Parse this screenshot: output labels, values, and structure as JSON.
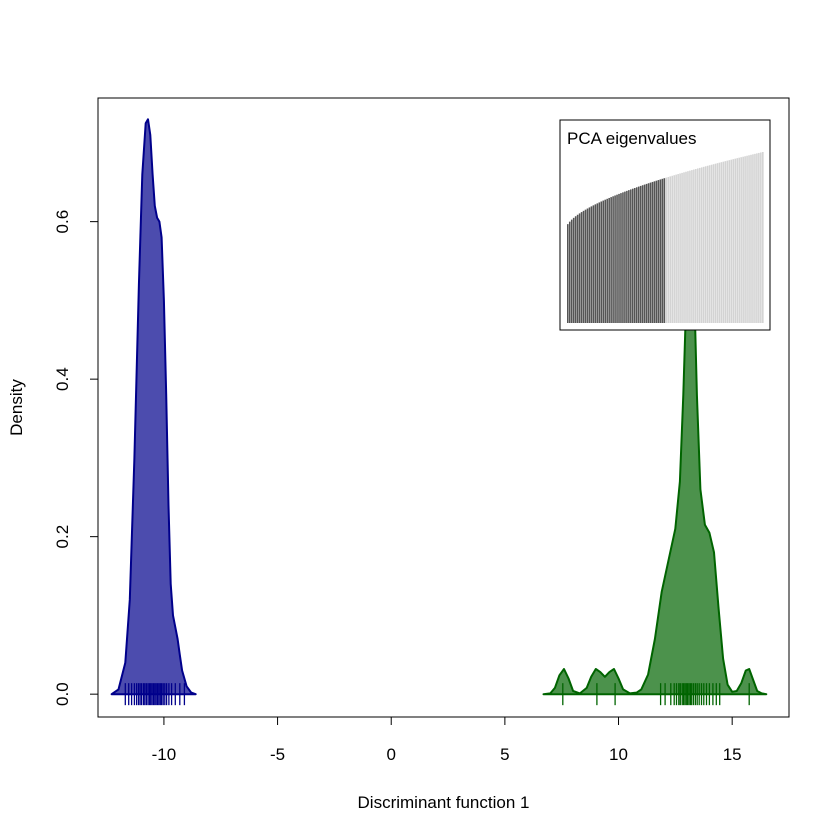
{
  "chart_data": {
    "type": "area",
    "title": "",
    "xlabel": "Discriminant function 1",
    "ylabel": "Density",
    "xlim": [
      -12.9,
      17.5
    ],
    "ylim": [
      -0.029,
      0.757
    ],
    "x_ticks": [
      -10,
      -5,
      0,
      5,
      10,
      15
    ],
    "x_tick_labels": [
      "-10",
      "-5",
      "0",
      "5",
      "10",
      "15"
    ],
    "y_ticks": [
      0.0,
      0.2,
      0.4,
      0.6
    ],
    "y_tick_labels": [
      "0.0",
      "0.2",
      "0.4",
      "0.6"
    ],
    "grid": false,
    "series": [
      {
        "color": "#00008b",
        "fill": "rgba(0,0,139,0.7)",
        "density": {
          "x": [
            -12.3,
            -12.0,
            -11.7,
            -11.5,
            -11.3,
            -11.1,
            -10.95,
            -10.8,
            -10.7,
            -10.6,
            -10.5,
            -10.4,
            -10.3,
            -10.2,
            -10.1,
            -10.0,
            -9.9,
            -9.8,
            -9.7,
            -9.6,
            -9.5,
            -9.4,
            -9.3,
            -9.2,
            -9.0,
            -8.8,
            -8.6
          ],
          "y": [
            0.0,
            0.006,
            0.04,
            0.12,
            0.3,
            0.52,
            0.66,
            0.725,
            0.73,
            0.71,
            0.66,
            0.62,
            0.605,
            0.6,
            0.58,
            0.5,
            0.38,
            0.24,
            0.14,
            0.1,
            0.085,
            0.07,
            0.05,
            0.03,
            0.01,
            0.002,
            0.0
          ]
        },
        "rug": [
          -11.7,
          -11.55,
          -11.42,
          -11.3,
          -11.2,
          -11.12,
          -11.05,
          -10.98,
          -10.9,
          -10.84,
          -10.77,
          -10.7,
          -10.64,
          -10.58,
          -10.52,
          -10.46,
          -10.4,
          -10.34,
          -10.28,
          -10.22,
          -10.16,
          -10.1,
          -10.03,
          -9.96,
          -9.88,
          -9.78,
          -9.66,
          -9.5,
          -9.3,
          -9.1
        ]
      },
      {
        "color": "#006400",
        "fill": "rgba(0,100,0,0.7)",
        "density": {
          "x": [
            6.7,
            7.0,
            7.2,
            7.4,
            7.6,
            7.8,
            8.0,
            8.3,
            8.6,
            8.8,
            9.0,
            9.2,
            9.4,
            9.6,
            9.8,
            10.0,
            10.2,
            10.5,
            10.8,
            11.0,
            11.3,
            11.6,
            11.9,
            12.2,
            12.5,
            12.7,
            12.85,
            13.0,
            13.1,
            13.2,
            13.3,
            13.45,
            13.6,
            13.8,
            14.0,
            14.2,
            14.4,
            14.6,
            14.8,
            15.0,
            15.2,
            15.4,
            15.6,
            15.75,
            15.9,
            16.1,
            16.3,
            16.5
          ],
          "y": [
            0.0,
            0.001,
            0.008,
            0.024,
            0.032,
            0.02,
            0.004,
            0.001,
            0.008,
            0.022,
            0.032,
            0.028,
            0.022,
            0.028,
            0.032,
            0.02,
            0.006,
            0.001,
            0.002,
            0.006,
            0.025,
            0.07,
            0.13,
            0.17,
            0.21,
            0.27,
            0.38,
            0.52,
            0.58,
            0.59,
            0.55,
            0.38,
            0.26,
            0.215,
            0.205,
            0.18,
            0.11,
            0.045,
            0.012,
            0.003,
            0.004,
            0.014,
            0.03,
            0.032,
            0.02,
            0.004,
            0.001,
            0.0
          ]
        },
        "rug": [
          7.55,
          9.05,
          9.85,
          11.85,
          12.05,
          12.3,
          12.45,
          12.55,
          12.65,
          12.72,
          12.8,
          12.86,
          12.92,
          12.98,
          13.04,
          13.1,
          13.16,
          13.22,
          13.3,
          13.38,
          13.46,
          13.55,
          13.65,
          13.75,
          13.87,
          14.0,
          14.15,
          14.3,
          14.45,
          15.75
        ]
      }
    ],
    "inset": {
      "title": "PCA eigenvalues",
      "bar_count": 100,
      "retained": 50,
      "retained_color": "#555555",
      "other_color": "#d3d3d3"
    }
  }
}
